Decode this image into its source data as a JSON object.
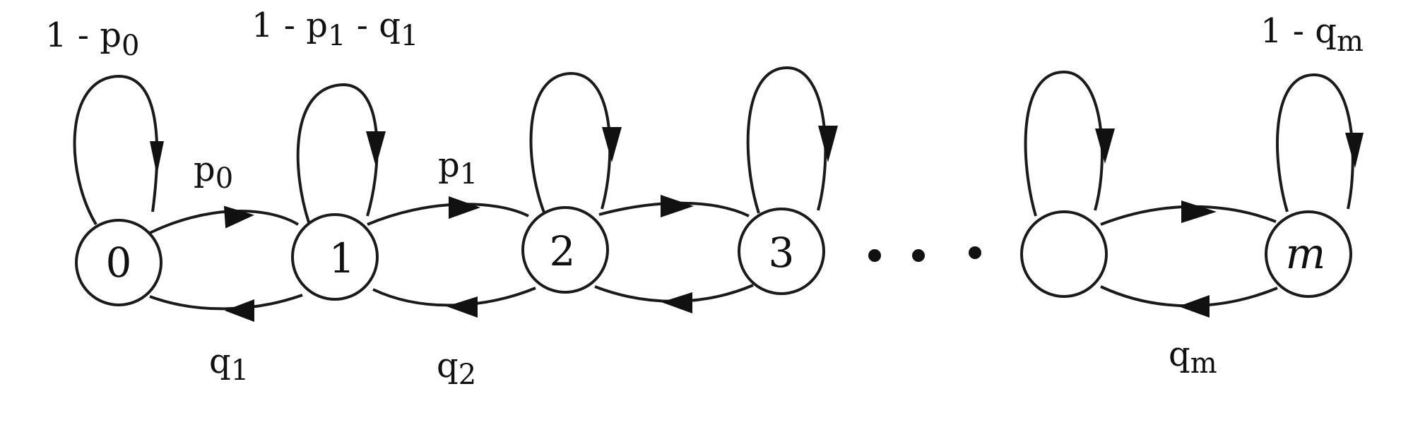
{
  "diagram": {
    "type": "birth-death-chain",
    "states": [
      {
        "id": "s0",
        "label": "0"
      },
      {
        "id": "s1",
        "label": "1"
      },
      {
        "id": "s2",
        "label": "2"
      },
      {
        "id": "s3",
        "label": "3"
      },
      {
        "id": "s_blank",
        "label": ""
      },
      {
        "id": "sm",
        "label": "m"
      }
    ],
    "ellipsis_between": [
      "s3",
      "s_blank"
    ],
    "self_loops": {
      "s0": {
        "label": "1 - p",
        "sub": "0"
      },
      "s1": {
        "label": "1 - p",
        "sub": "1",
        "label2": " - q",
        "sub2": "1"
      },
      "sm": {
        "label": "1 - q",
        "sub": "m"
      }
    },
    "forward_labels": {
      "s0_s1": {
        "label": "p",
        "sub": "0"
      },
      "s1_s2": {
        "label": "p",
        "sub": "1"
      }
    },
    "backward_labels": {
      "s1_s0": {
        "label": "q",
        "sub": "1"
      },
      "s2_s1": {
        "label": "q",
        "sub": "2"
      },
      "sm_prev": {
        "label": "q",
        "sub": "m"
      }
    }
  }
}
